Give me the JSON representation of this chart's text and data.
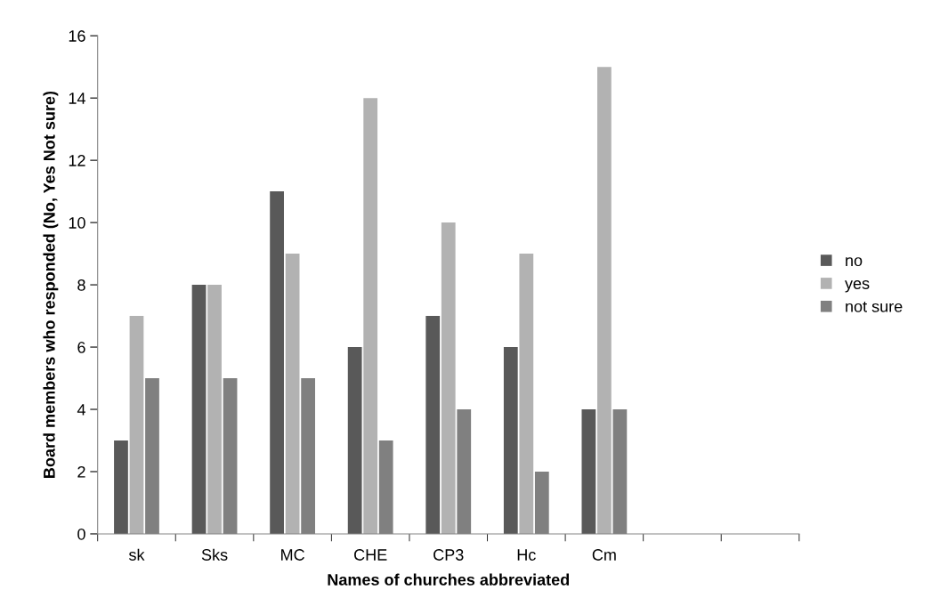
{
  "chart_data": {
    "type": "bar",
    "xlabel": "Names of churches abbreviated",
    "ylabel": "Board members who responded (No, Yes Not sure)",
    "categories": [
      "sk",
      "Sks",
      "MC",
      "CHE",
      "CP3",
      "Hc",
      "Cm",
      null,
      null
    ],
    "series": [
      {
        "name": "no",
        "color": "#595959",
        "values": [
          3,
          8,
          11,
          6,
          7,
          6,
          4,
          null,
          null
        ]
      },
      {
        "name": "yes",
        "color": "#b2b2b2",
        "values": [
          7,
          8,
          9,
          14,
          10,
          9,
          15,
          null,
          null
        ]
      },
      {
        "name": "not sure",
        "color": "#808080",
        "values": [
          5,
          5,
          5,
          3,
          4,
          2,
          4,
          null,
          null
        ]
      }
    ],
    "ylim": [
      0,
      16
    ],
    "yticks": [
      0,
      2,
      4,
      6,
      8,
      10,
      12,
      14,
      16
    ],
    "grid": false,
    "legend": "right"
  }
}
